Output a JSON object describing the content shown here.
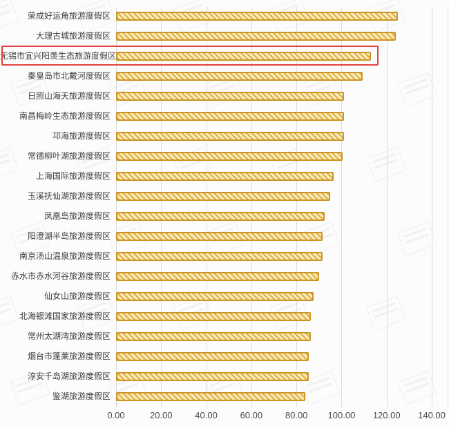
{
  "chart_data": {
    "type": "bar",
    "orientation": "horizontal",
    "title": "",
    "xlabel": "",
    "ylabel": "",
    "categories": [
      "荣成好运角旅游度假区",
      "大理古城旅游度假区",
      "无锡市宜兴阳羡生态旅游度假区",
      "秦皇岛市北戴河度假区",
      "日照山海天旅游度假区",
      "南昌梅岭生态旅游度假区",
      "邛海旅游度假区",
      "常德柳叶湖旅游度假区",
      "上海国际旅游度假区",
      "玉溪抚仙湖旅游度假区",
      "凤凰岛旅游度假区",
      "阳澄湖半岛旅游度假区",
      "南京汤山温泉旅游度假区",
      "赤水市赤水河谷旅游度假区",
      "仙女山旅游度假区",
      "北海银滩国家旅游度假区",
      "常州太湖湾旅游度假区",
      "烟台市蓬莱旅游度假区",
      "淳安千岛湖旅游度假区",
      "鉴湖旅游度假区"
    ],
    "values": [
      125,
      124,
      113,
      109.5,
      101,
      101,
      101,
      100.5,
      96.5,
      95,
      92.5,
      91.5,
      91.5,
      90,
      87.5,
      86.5,
      86.5,
      85.5,
      85.5,
      84
    ],
    "xlim": [
      0,
      140
    ],
    "x_tick_values": [
      0,
      20,
      40,
      60,
      80,
      100,
      120,
      140
    ],
    "x_tick_labels": [
      "0.00",
      "20.00",
      "40.00",
      "60.00",
      "80.00",
      "100.00",
      "120.00",
      "140.00"
    ],
    "grid": true,
    "legend": null,
    "highlight": {
      "index": 2,
      "label": "无锡市宜兴阳羡生态旅游度假区",
      "color": "#e2423d"
    },
    "bar_style": {
      "border_color": "#cb9423",
      "stripe_dark": "#e3b44a",
      "stripe_light": "#f8efc4"
    },
    "gridline_color": "#dcdcdc"
  }
}
